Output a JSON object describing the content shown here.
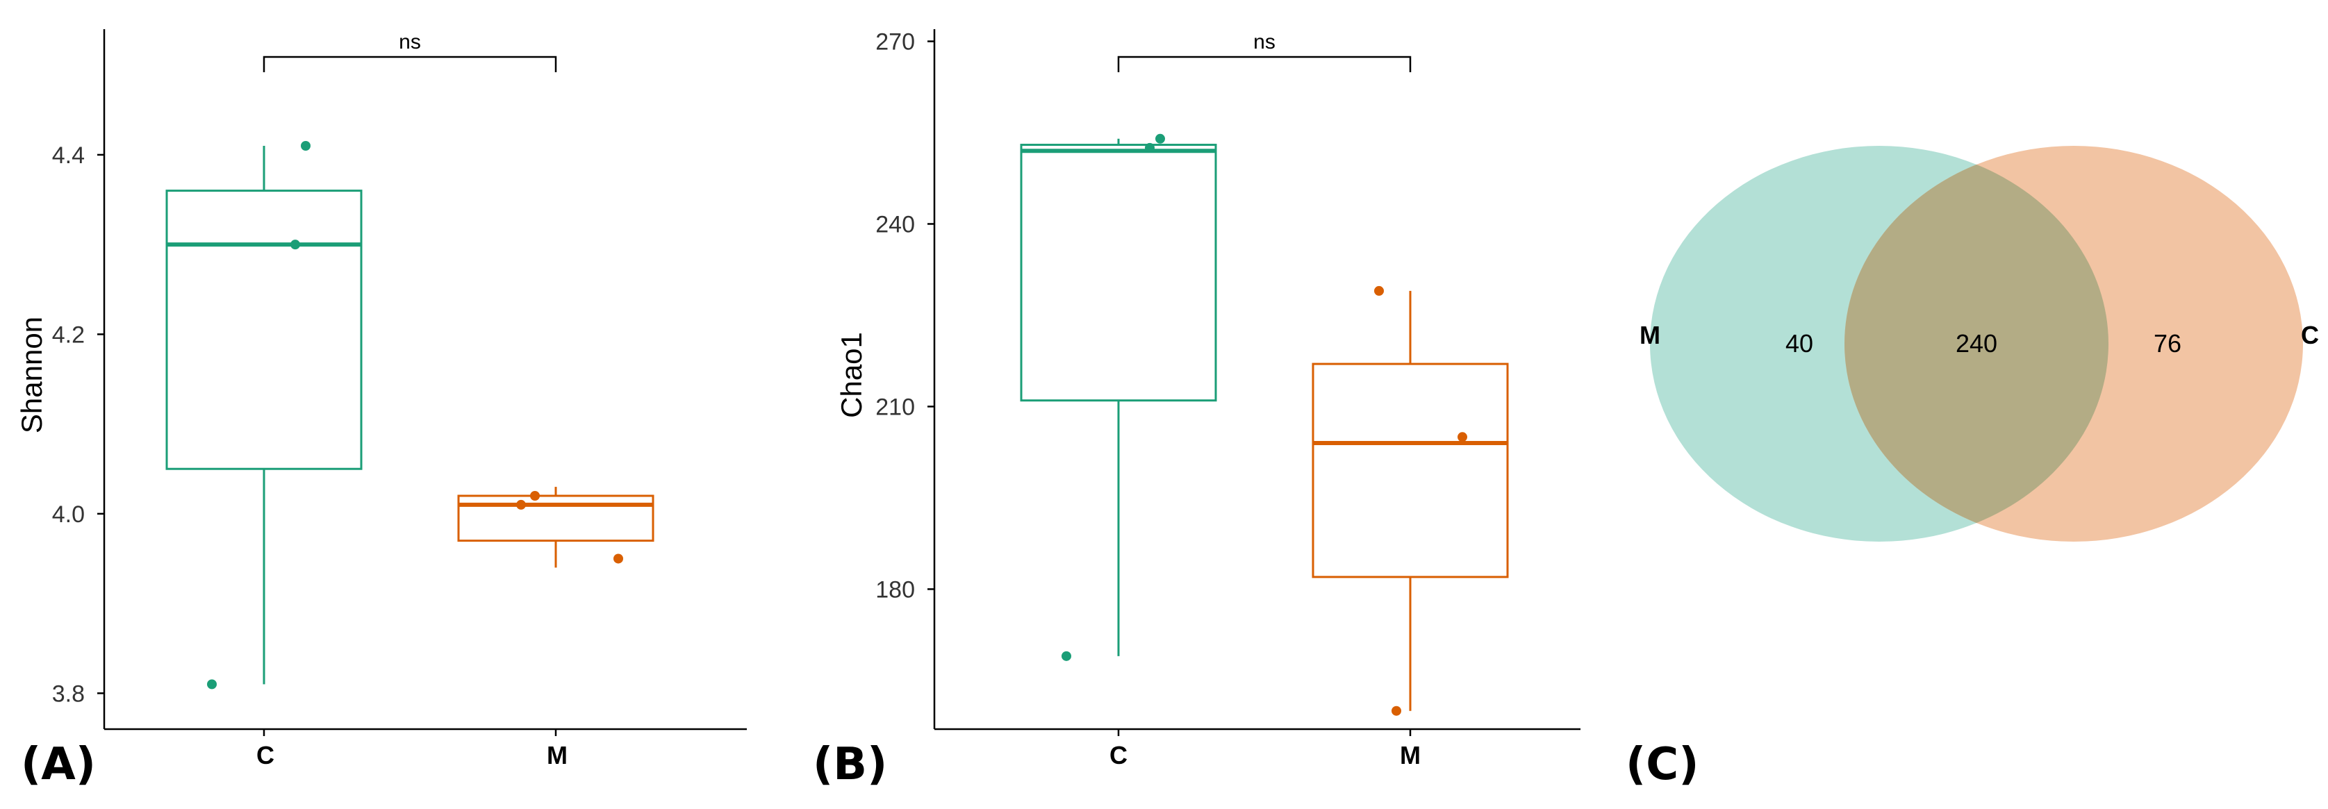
{
  "colors": {
    "C": "#1b9e77",
    "M": "#d95f02",
    "venn_left": "#b3e0d6",
    "venn_right": "#f2c4a3",
    "venn_overlap": "#b3ac85"
  },
  "panels": {
    "A": {
      "label": "(A)"
    },
    "B": {
      "label": "(B)"
    },
    "C": {
      "label": "(C)"
    }
  },
  "chart_data": [
    {
      "type": "box",
      "ylabel": "Shannon",
      "ylim": [
        3.76,
        4.54
      ],
      "yticks": [
        3.8,
        4.0,
        4.2,
        4.4
      ],
      "ytick_labels": [
        "3.8",
        "4.0",
        "4.2",
        "4.4"
      ],
      "categories": [
        "C",
        "M"
      ],
      "groups": [
        {
          "name": "C",
          "color": "#1b9e77",
          "whisker_low": 3.81,
          "q1": 4.05,
          "median": 4.3,
          "q3": 4.36,
          "whisker_high": 4.41,
          "points": [
            3.81,
            4.3,
            4.41
          ]
        },
        {
          "name": "M",
          "color": "#d95f02",
          "whisker_low": 3.94,
          "q1": 3.97,
          "median": 4.01,
          "q3": 4.02,
          "whisker_high": 4.03,
          "points": [
            4.02,
            4.01,
            3.95
          ]
        }
      ],
      "significance": {
        "label": "ns",
        "from": "C",
        "to": "M"
      }
    },
    {
      "type": "box",
      "ylabel": "Chao1",
      "ylim": [
        157,
        272
      ],
      "yticks": [
        180,
        210,
        240,
        270
      ],
      "ytick_labels": [
        "180",
        "210",
        "240",
        "270"
      ],
      "categories": [
        "C",
        "M"
      ],
      "groups": [
        {
          "name": "C",
          "color": "#1b9e77",
          "whisker_low": 169,
          "q1": 211,
          "median": 252,
          "q3": 253,
          "whisker_high": 254,
          "points": [
            169,
            252.5,
            254
          ]
        },
        {
          "name": "M",
          "color": "#d95f02",
          "whisker_low": 160,
          "q1": 182,
          "median": 204,
          "q3": 217,
          "whisker_high": 229,
          "points": [
            229,
            205,
            160
          ]
        }
      ],
      "significance": {
        "label": "ns",
        "from": "C",
        "to": "M"
      }
    },
    {
      "type": "venn",
      "sets": [
        "M",
        "C"
      ],
      "only_left": "40",
      "overlap": "240",
      "only_right": "76"
    }
  ]
}
